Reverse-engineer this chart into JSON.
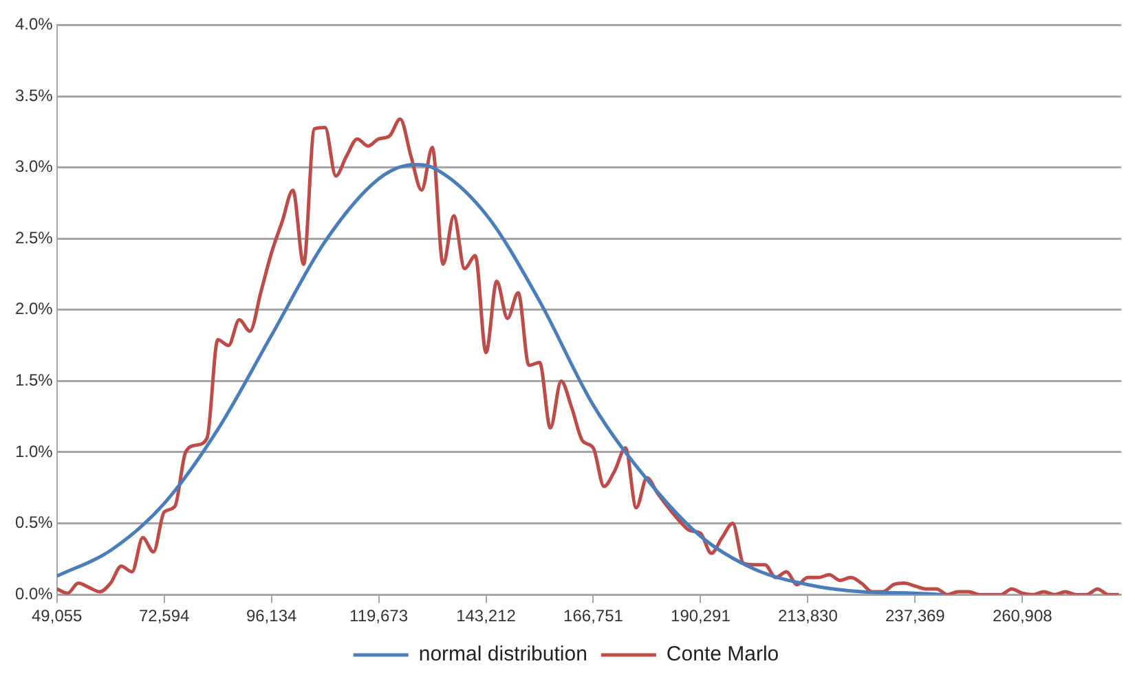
{
  "chart_data": {
    "type": "line",
    "xlim": [
      49055,
      282600
    ],
    "xticks": [
      {
        "value": 49055,
        "label": "49,055"
      },
      {
        "value": 72594,
        "label": "72,594"
      },
      {
        "value": 96134,
        "label": "96,134"
      },
      {
        "value": 119673,
        "label": "119,673"
      },
      {
        "value": 143212,
        "label": "143,212"
      },
      {
        "value": 166751,
        "label": "166,751"
      },
      {
        "value": 190291,
        "label": "190,291"
      },
      {
        "value": 213830,
        "label": "213,830"
      },
      {
        "value": 237369,
        "label": "237,369"
      },
      {
        "value": 260908,
        "label": "260,908"
      }
    ],
    "ylim": [
      0,
      4
    ],
    "yticks": [
      {
        "value": 0,
        "label": "0.0%"
      },
      {
        "value": 0.5,
        "label": "0.5%"
      },
      {
        "value": 1,
        "label": "1.0%"
      },
      {
        "value": 1.5,
        "label": "1.5%"
      },
      {
        "value": 2,
        "label": "2.0%"
      },
      {
        "value": 2.5,
        "label": "2.5%"
      },
      {
        "value": 3,
        "label": "3.0%"
      },
      {
        "value": 3.5,
        "label": "3.5%"
      },
      {
        "value": 4,
        "label": "4.0%"
      }
    ],
    "grid": "y",
    "legend": "bottom",
    "marker": "none",
    "line_style": "solid",
    "series": [
      {
        "name": "normal distribution",
        "color": "#4a7ebb",
        "x": [
          49055,
          60825,
          72595,
          84365,
          96135,
          107905,
          119675,
          127620,
          131445,
          143215,
          154985,
          166755,
          178525,
          190295,
          202065,
          213835,
          225605,
          237375,
          243500
        ],
        "values": [
          0.13,
          0.31,
          0.64,
          1.16,
          1.82,
          2.48,
          2.92,
          3.02,
          3.0,
          2.67,
          2.06,
          1.33,
          0.81,
          0.41,
          0.18,
          0.07,
          0.02,
          0.01,
          0
        ]
      },
      {
        "name": "Conte Marlo",
        "color": "#be4b48",
        "x": [
          49055,
          51409,
          53763,
          56117,
          58471,
          60825,
          63179,
          65533,
          67887,
          70241,
          72595,
          74949,
          77303,
          79657,
          82011,
          84365,
          86719,
          89073,
          91427,
          93781,
          96135,
          98489,
          100843,
          103197,
          105551,
          107905,
          110259,
          112613,
          114967,
          117321,
          119675,
          122029,
          124383,
          126737,
          129091,
          131445,
          133799,
          136153,
          138507,
          140861,
          143215,
          145569,
          147923,
          150277,
          152631,
          154985,
          157339,
          159693,
          162047,
          164401,
          166755,
          169109,
          171463,
          173817,
          176171,
          178525,
          180879,
          183233,
          185587,
          187941,
          190295,
          192649,
          195003,
          197357,
          199711,
          202065,
          204419,
          206773,
          209127,
          211481,
          213835,
          216189,
          218543,
          220897,
          223251,
          225605,
          227959,
          230313,
          232667,
          235021,
          237375,
          239729,
          242083,
          244437,
          246791,
          249145,
          251499,
          253853,
          256207,
          258561,
          260915,
          263269,
          265623,
          267977,
          270331,
          272685,
          275039,
          277393,
          279747,
          282101
        ],
        "values": [
          0.04,
          0.01,
          0.08,
          0.05,
          0.02,
          0.08,
          0.2,
          0.16,
          0.4,
          0.3,
          0.58,
          0.62,
          1.0,
          1.05,
          1.1,
          1.79,
          1.75,
          1.93,
          1.85,
          2.12,
          2.4,
          2.62,
          2.84,
          2.32,
          3.27,
          3.28,
          2.94,
          3.08,
          3.2,
          3.15,
          3.2,
          3.22,
          3.34,
          3.08,
          2.84,
          3.14,
          2.32,
          2.66,
          2.29,
          2.38,
          1.7,
          2.2,
          1.94,
          2.12,
          1.61,
          1.63,
          1.17,
          1.5,
          1.31,
          1.08,
          1.03,
          0.76,
          0.87,
          1.03,
          0.61,
          0.82,
          0.71,
          0.61,
          0.52,
          0.45,
          0.43,
          0.29,
          0.4,
          0.5,
          0.22,
          0.21,
          0.21,
          0.12,
          0.16,
          0.07,
          0.12,
          0.12,
          0.14,
          0.1,
          0.12,
          0.08,
          0.02,
          0.02,
          0.07,
          0.08,
          0.06,
          0.04,
          0.04,
          0,
          0.02,
          0.02,
          0,
          0,
          0,
          0.04,
          0.01,
          0,
          0.02,
          0,
          0.02,
          0,
          0,
          0.04,
          0,
          0
        ]
      }
    ]
  }
}
